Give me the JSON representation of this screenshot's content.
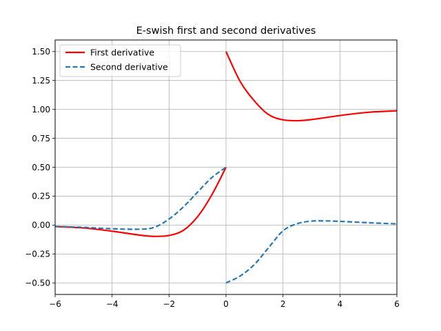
{
  "chart_data": {
    "type": "line",
    "title": "E-swish first and second derivatives",
    "xlabel": "",
    "ylabel": "",
    "xlim": [
      -6,
      6
    ],
    "ylim": [
      -0.6,
      1.6
    ],
    "grid": true,
    "legend_position": "upper-left",
    "x_ticks": [
      -6,
      -4,
      -2,
      0,
      2,
      4,
      6
    ],
    "x_tick_labels": [
      "−6",
      "−4",
      "−2",
      "0",
      "2",
      "4",
      "6"
    ],
    "y_ticks": [
      -0.5,
      -0.25,
      0,
      0.25,
      0.5,
      0.75,
      1.0,
      1.25,
      1.5
    ],
    "y_tick_labels": [
      "−0.50",
      "−0.25",
      "0.00",
      "0.25",
      "0.50",
      "0.75",
      "1.00",
      "1.25",
      "1.50"
    ],
    "series": [
      {
        "name": "First derivative",
        "color": "#ff0000",
        "style": "solid",
        "segments": [
          {
            "x": [
              -6,
              -5,
              -4,
              -3,
              -2.5,
              -2,
              -1.5,
              -1,
              -0.5,
              0
            ],
            "y": [
              -0.013,
              -0.025,
              -0.053,
              -0.088,
              -0.098,
              -0.09,
              -0.046,
              0.072,
              0.26,
              0.5
            ]
          },
          {
            "x": [
              0,
              0.5,
              1,
              1.5,
              2,
              2.5,
              3,
              4,
              5,
              6
            ],
            "y": [
              1.5,
              1.24,
              1.072,
              0.954,
              0.91,
              0.902,
              0.912,
              0.947,
              0.975,
              0.988
            ]
          }
        ]
      },
      {
        "name": "Second derivative",
        "color": "#1f77b4",
        "style": "dashed",
        "segments": [
          {
            "x": [
              -6,
              -5,
              -4,
              -3,
              -2.5,
              -2,
              -1.5,
              -1,
              -0.5,
              0
            ],
            "y": [
              -0.012,
              -0.02,
              -0.032,
              -0.036,
              -0.018,
              0.052,
              0.156,
              0.284,
              0.41,
              0.5
            ]
          },
          {
            "x": [
              0,
              0.5,
              1,
              1.5,
              2,
              2.5,
              3,
              3.5,
              4,
              5,
              6
            ],
            "y": [
              -0.5,
              -0.44,
              -0.34,
              -0.194,
              -0.05,
              0.012,
              0.034,
              0.036,
              0.032,
              0.02,
              0.01
            ]
          }
        ]
      }
    ]
  }
}
